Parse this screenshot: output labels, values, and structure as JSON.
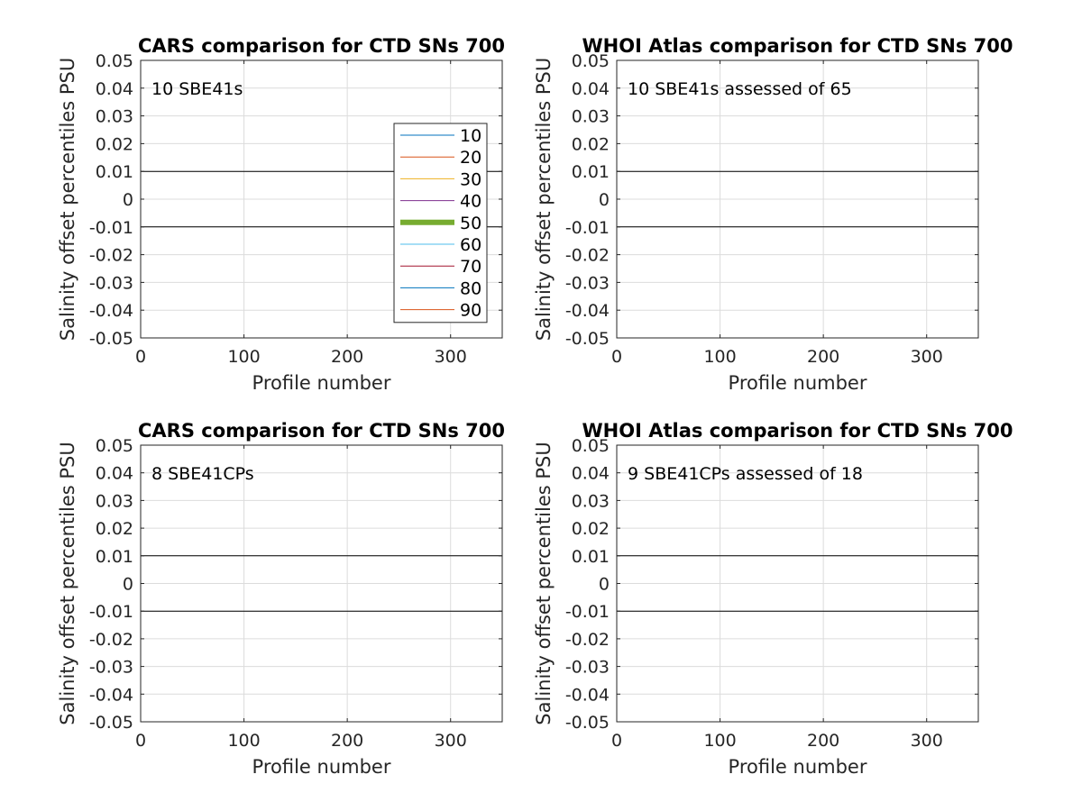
{
  "chart_data": [
    {
      "type": "line",
      "title": "CARS comparison for CTD SNs 700",
      "xlabel": "Profile number",
      "ylabel": "Salinity offset percentiles PSU",
      "xlim": [
        0,
        350
      ],
      "ylim": [
        -0.05,
        0.05
      ],
      "xticks": [
        "0",
        "100",
        "200",
        "300"
      ],
      "yticks": [
        "-0.05",
        "-0.04",
        "-0.03",
        "-0.02",
        "-0.01",
        "0",
        "0.01",
        "0.02",
        "0.03",
        "0.04",
        "0.05"
      ],
      "annotation": "10 SBE41s",
      "reference_lines": [
        0.01,
        -0.01
      ],
      "grid": true,
      "legend_position": "right",
      "series": [
        {
          "name": "10",
          "color": "#0072bd",
          "values": []
        },
        {
          "name": "20",
          "color": "#d95319",
          "values": []
        },
        {
          "name": "30",
          "color": "#edb120",
          "values": []
        },
        {
          "name": "40",
          "color": "#7e2f8e",
          "values": []
        },
        {
          "name": "50",
          "color": "#77ac30",
          "values": []
        },
        {
          "name": "60",
          "color": "#4dbeee",
          "values": []
        },
        {
          "name": "70",
          "color": "#a2142f",
          "values": []
        },
        {
          "name": "80",
          "color": "#0072bd",
          "values": []
        },
        {
          "name": "90",
          "color": "#d95319",
          "values": []
        }
      ]
    },
    {
      "type": "line",
      "title": "WHOI Atlas comparison for CTD SNs 700",
      "xlabel": "Profile number",
      "ylabel": "Salinity offset percentiles PSU",
      "xlim": [
        0,
        350
      ],
      "ylim": [
        -0.05,
        0.05
      ],
      "xticks": [
        "0",
        "100",
        "200",
        "300"
      ],
      "yticks": [
        "-0.05",
        "-0.04",
        "-0.03",
        "-0.02",
        "-0.01",
        "0",
        "0.01",
        "0.02",
        "0.03",
        "0.04",
        "0.05"
      ],
      "annotation": "10 SBE41s assessed of 65",
      "reference_lines": [
        0.01,
        -0.01
      ],
      "grid": true,
      "series": []
    },
    {
      "type": "line",
      "title": "CARS comparison for CTD SNs 700",
      "xlabel": "Profile number",
      "ylabel": "Salinity offset percentiles PSU",
      "xlim": [
        0,
        350
      ],
      "ylim": [
        -0.05,
        0.05
      ],
      "xticks": [
        "0",
        "100",
        "200",
        "300"
      ],
      "yticks": [
        "-0.05",
        "-0.04",
        "-0.03",
        "-0.02",
        "-0.01",
        "0",
        "0.01",
        "0.02",
        "0.03",
        "0.04",
        "0.05"
      ],
      "annotation": "8 SBE41CPs",
      "reference_lines": [
        0.01,
        -0.01
      ],
      "grid": true,
      "series": []
    },
    {
      "type": "line",
      "title": "WHOI Atlas comparison for CTD SNs 700",
      "xlabel": "Profile number",
      "ylabel": "Salinity offset percentiles PSU",
      "xlim": [
        0,
        350
      ],
      "ylim": [
        -0.05,
        0.05
      ],
      "xticks": [
        "0",
        "100",
        "200",
        "300"
      ],
      "yticks": [
        "-0.05",
        "-0.04",
        "-0.03",
        "-0.02",
        "-0.01",
        "0",
        "0.01",
        "0.02",
        "0.03",
        "0.04",
        "0.05"
      ],
      "annotation": "9 SBE41CPs assessed of 18",
      "reference_lines": [
        0.01,
        -0.01
      ],
      "grid": true,
      "series": []
    }
  ]
}
